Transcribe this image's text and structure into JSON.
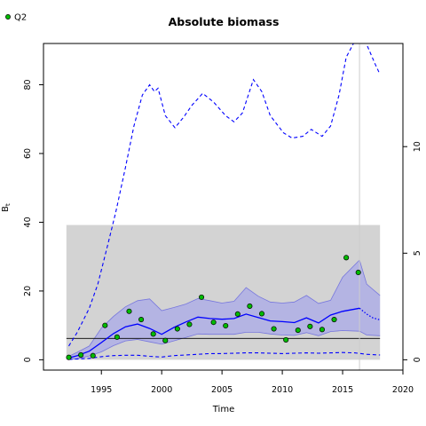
{
  "chart_data": {
    "type": "line",
    "title": "Absolute biomass",
    "xlabel": "Time",
    "ylabel": "B",
    "ylabel_subscript": "t",
    "xlim": [
      1990.2,
      2020
    ],
    "ylim": [
      -3,
      92
    ],
    "x_ticks": [
      1995,
      2000,
      2005,
      2010,
      2015,
      2020
    ],
    "y_ticks": [
      0,
      20,
      40,
      60,
      80
    ],
    "y2_ticks": [
      0,
      5,
      10
    ],
    "y2_ratio": 6.2,
    "legend": {
      "position": "top-left",
      "entries": [
        {
          "label": "Q2",
          "marker": "green-dot"
        }
      ]
    },
    "colors": {
      "estimate": "#0000ff",
      "confidence_band": "#a9a9e8",
      "data_region": "#d3d3d3",
      "points": "#00bb00",
      "reference_line": "#000000",
      "vertical_line": "#cccccc"
    },
    "data_region": {
      "x": [
        1992.1,
        2018.1
      ],
      "y": [
        0,
        39.2
      ]
    },
    "reference_line_y": 6.2,
    "vertical_line_x": 2016.4,
    "points": {
      "name": "Q2",
      "x": [
        1992.3,
        1993.3,
        1994.3,
        1995.3,
        1996.3,
        1997.3,
        1998.3,
        1999.3,
        2000.3,
        2001.3,
        2002.3,
        2003.3,
        2004.3,
        2005.3,
        2006.3,
        2007.3,
        2008.3,
        2009.3,
        2010.3,
        2011.3,
        2012.3,
        2013.3,
        2014.3,
        2015.3,
        2016.3
      ],
      "y": [
        0.7,
        1.4,
        1.2,
        10.0,
        6.6,
        14.1,
        11.7,
        7.5,
        5.6,
        9.0,
        10.3,
        18.2,
        10.9,
        9.9,
        13.3,
        15.6,
        13.4,
        9.0,
        5.8,
        8.6,
        9.7,
        8.8,
        11.7,
        29.7,
        25.4
      ]
    },
    "series": [
      {
        "name": "",
        "role": "estimate",
        "style": "solid",
        "x": [
          1992.3,
          1993,
          1994,
          1995,
          1996,
          1997,
          1998,
          1999,
          2000,
          2001,
          2002,
          2003,
          2004,
          2005,
          2006,
          2007,
          2008,
          2009,
          2010,
          2011,
          2012,
          2013,
          2014,
          2015,
          2016.4
        ],
        "y": [
          0.5,
          1.2,
          2.5,
          5.0,
          7.6,
          9.6,
          10.4,
          9.1,
          7.4,
          9.4,
          11.0,
          12.4,
          12.0,
          11.8,
          12.0,
          13.3,
          12.3,
          11.3,
          11.1,
          10.8,
          12.2,
          10.7,
          13.0,
          14.1,
          15.0
        ]
      },
      {
        "name": "",
        "role": "estimate-forecast",
        "style": "dotted",
        "x": [
          2016.4,
          2017,
          2017.5,
          2018.1
        ],
        "y": [
          15.0,
          13.3,
          12.2,
          11.6
        ]
      },
      {
        "name": "",
        "role": "band-upper",
        "x": [
          1992.3,
          1993,
          1994,
          1995,
          1996,
          1997,
          1998,
          1999,
          2000,
          2001,
          2002,
          2003,
          2004,
          2005,
          2006,
          2007,
          2008,
          2009,
          2010,
          2011,
          2012,
          2013,
          2014,
          2015,
          2016.4,
          2017,
          2018.1
        ],
        "y": [
          1.0,
          2.2,
          4.0,
          9.2,
          12.6,
          15.4,
          17.2,
          17.7,
          14.3,
          15.2,
          16.2,
          17.8,
          17.2,
          16.5,
          17.0,
          21.0,
          18.5,
          16.8,
          16.5,
          16.8,
          18.7,
          16.4,
          17.3,
          24.0,
          29.0,
          22.0,
          18.7
        ]
      },
      {
        "name": "",
        "role": "band-lower",
        "x": [
          1992.3,
          1993,
          1994,
          1995,
          1996,
          1997,
          1998,
          1999,
          2000,
          2001,
          2002,
          2003,
          2004,
          2005,
          2006,
          2007,
          2008,
          2009,
          2010,
          2011,
          2012,
          2013,
          2014,
          2015,
          2016.4,
          2017,
          2018.1
        ],
        "y": [
          0.1,
          0.3,
          1.1,
          2.3,
          4.1,
          5.5,
          5.9,
          5.2,
          4.5,
          5.5,
          6.5,
          7.5,
          7.4,
          7.4,
          7.4,
          8.0,
          8.0,
          7.5,
          7.2,
          7.1,
          7.9,
          7.0,
          8.2,
          8.5,
          8.3,
          7.2,
          7.0
        ]
      },
      {
        "name": "",
        "role": "upper-dashed",
        "style": "dashed",
        "x": [
          1992.3,
          1993,
          1994,
          1994.7,
          1995.5,
          1996.2,
          1997,
          1997.7,
          1998.4,
          1999,
          1999.4,
          1999.7,
          2000.3,
          2001.1,
          2001.8,
          2002.5,
          2003.4,
          2004.3,
          2005.3,
          2006,
          2006.7,
          2007.6,
          2008.3,
          2009,
          2010.1,
          2010.8,
          2011.7,
          2012.4,
          2013.3,
          2014,
          2014.7,
          2015.3,
          2015.9,
          2016.9,
          2017.7,
          2018.1
        ],
        "y": [
          4,
          8,
          15,
          22,
          33,
          43,
          56,
          68,
          77,
          80,
          78,
          79,
          71,
          67.5,
          70.5,
          74,
          77.5,
          75,
          71,
          69.2,
          71.8,
          81.5,
          78,
          71,
          66,
          64.5,
          65,
          67,
          65,
          68,
          77,
          88,
          92,
          92.5,
          86,
          83
        ]
      },
      {
        "name": "",
        "role": "lower-dashed",
        "style": "dashed",
        "x": [
          1992.3,
          1994,
          1995,
          1996,
          1997,
          1998,
          1999,
          2000,
          2001,
          2002,
          2003,
          2004,
          2005,
          2006,
          2007,
          2008,
          2009,
          2010,
          2011,
          2012,
          2013,
          2014,
          2015,
          2016,
          2017,
          2018.1
        ],
        "y": [
          0.1,
          0.4,
          0.9,
          1.2,
          1.3,
          1.3,
          1.0,
          0.8,
          1.2,
          1.4,
          1.6,
          1.8,
          1.8,
          1.9,
          2.0,
          2.0,
          1.9,
          1.8,
          1.9,
          2.0,
          1.9,
          2.0,
          2.1,
          2.0,
          1.6,
          1.4
        ]
      }
    ]
  }
}
